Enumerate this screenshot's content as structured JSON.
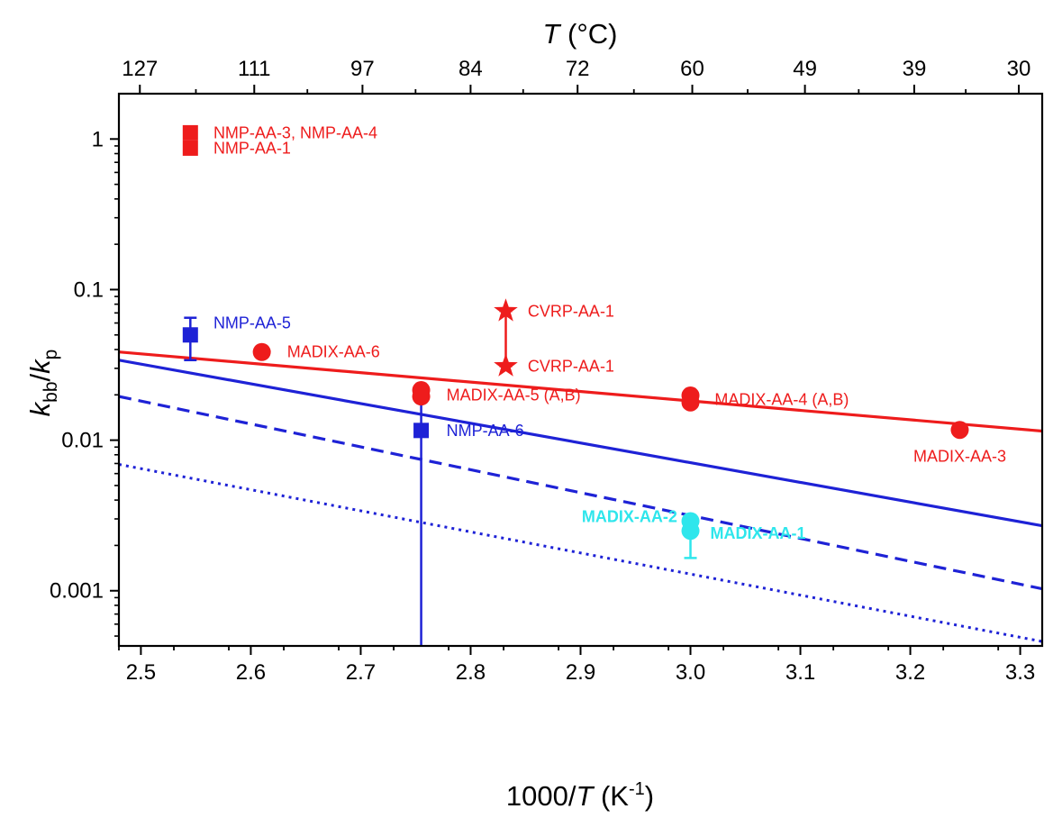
{
  "chart_data": {
    "type": "scatter",
    "x_axis": {
      "label_prefix": "1000/",
      "label_var": "T",
      "label_unit_open": " (K",
      "label_unit_sup": "-1",
      "label_unit_close": ")",
      "range": [
        2.48,
        3.32
      ],
      "ticks": [
        2.5,
        2.6,
        2.7,
        2.8,
        2.9,
        3.0,
        3.1,
        3.2,
        3.3
      ],
      "tick_labels": [
        "2.5",
        "2.6",
        "2.7",
        "2.8",
        "2.9",
        "3.0",
        "3.1",
        "3.2",
        "3.3"
      ]
    },
    "top_axis": {
      "label_var": "T",
      "label_unit": " (°C)",
      "ticks_celsius": [
        127,
        111,
        97,
        84,
        72,
        60,
        49,
        39,
        30
      ],
      "tick_labels": [
        "127",
        "111",
        "97",
        "84",
        "72",
        "60",
        "49",
        "39",
        "30"
      ]
    },
    "y_axis": {
      "label_k": "k",
      "label_sub1": "bb",
      "label_slash": "/",
      "label_sub2": "p",
      "scale": "log",
      "range": [
        0.00043,
        2.0
      ],
      "ticks": [
        0.001,
        0.01,
        0.1,
        1
      ],
      "tick_labels": [
        "0.001",
        "0.01",
        "0.1",
        "1"
      ]
    },
    "lines": [
      {
        "color": "#ee1c1c",
        "style": "solid",
        "points": [
          [
            2.48,
            0.0385
          ],
          [
            3.32,
            0.0115
          ]
        ]
      },
      {
        "color": "#1e22d6",
        "style": "solid",
        "points": [
          [
            2.48,
            0.034
          ],
          [
            3.32,
            0.0027
          ]
        ]
      },
      {
        "color": "#1e22d6",
        "style": "dashed",
        "points": [
          [
            2.48,
            0.0195
          ],
          [
            3.32,
            0.00103
          ]
        ]
      },
      {
        "color": "#1e22d6",
        "style": "dotted",
        "points": [
          [
            2.48,
            0.0069
          ],
          [
            3.32,
            0.00046
          ]
        ]
      }
    ],
    "error_bars": [
      {
        "x": 2.545,
        "y_low": 0.034,
        "y_high": 0.065,
        "color": "#1e22d6"
      },
      {
        "x": 2.755,
        "y_low": 0.0003,
        "y_high": 0.022,
        "color": "#1e22d6"
      },
      {
        "x": 2.832,
        "y_low": 0.031,
        "y_high": 0.072,
        "color": "#ee1c1c"
      },
      {
        "x": 3.0,
        "y_low": 0.00165,
        "y_high": 0.0031,
        "color": "#2ee6ec"
      }
    ],
    "points": [
      {
        "x": 2.545,
        "y": 1.1,
        "marker": "square",
        "color": "#ee1c1c"
      },
      {
        "x": 2.545,
        "y": 0.87,
        "marker": "square",
        "color": "#ee1c1c"
      },
      {
        "x": 2.545,
        "y": 0.05,
        "marker": "square",
        "color": "#1e22d6"
      },
      {
        "x": 2.61,
        "y": 0.0385,
        "marker": "circle",
        "color": "#ee1c1c"
      },
      {
        "x": 2.755,
        "y": 0.0215,
        "marker": "circle",
        "color": "#ee1c1c"
      },
      {
        "x": 2.755,
        "y": 0.0195,
        "marker": "circle",
        "color": "#ee1c1c"
      },
      {
        "x": 2.755,
        "y": 0.0116,
        "marker": "square",
        "color": "#1e22d6"
      },
      {
        "x": 2.832,
        "y": 0.072,
        "marker": "star",
        "color": "#ee1c1c"
      },
      {
        "x": 2.832,
        "y": 0.031,
        "marker": "star",
        "color": "#ee1c1c"
      },
      {
        "x": 3.0,
        "y": 0.0198,
        "marker": "circle",
        "color": "#ee1c1c"
      },
      {
        "x": 3.0,
        "y": 0.0178,
        "marker": "circle",
        "color": "#ee1c1c"
      },
      {
        "x": 3.245,
        "y": 0.0117,
        "marker": "circle",
        "color": "#ee1c1c"
      },
      {
        "x": 3.0,
        "y": 0.0029,
        "marker": "circle",
        "color": "#2ee6ec"
      },
      {
        "x": 3.0,
        "y": 0.0025,
        "marker": "circle",
        "color": "#2ee6ec"
      }
    ],
    "annotations": [
      {
        "text": "NMP-AA-3, NMP-AA-4",
        "x": 2.566,
        "y": 1.1,
        "anchor": "start",
        "color": "#ee1c1c",
        "bold": false
      },
      {
        "text": "NMP-AA-1",
        "x": 2.566,
        "y": 0.87,
        "anchor": "start",
        "color": "#ee1c1c",
        "bold": false
      },
      {
        "text": "NMP-AA-5",
        "x": 2.566,
        "y": 0.06,
        "anchor": "start",
        "color": "#1e22d6",
        "bold": false
      },
      {
        "text": "MADIX-AA-6",
        "x": 2.633,
        "y": 0.0385,
        "anchor": "start",
        "color": "#ee1c1c",
        "bold": false
      },
      {
        "text": "CVRP-AA-1",
        "x": 2.852,
        "y": 0.072,
        "anchor": "start",
        "color": "#ee1c1c",
        "bold": false
      },
      {
        "text": "CVRP-AA-1",
        "x": 2.852,
        "y": 0.031,
        "anchor": "start",
        "color": "#ee1c1c",
        "bold": false
      },
      {
        "text": "MADIX-AA-5 (A,B)",
        "x": 2.778,
        "y": 0.02,
        "anchor": "start",
        "color": "#ee1c1c",
        "bold": false
      },
      {
        "text": "NMP-AA-6",
        "x": 2.778,
        "y": 0.0116,
        "anchor": "start",
        "color": "#1e22d6",
        "bold": false
      },
      {
        "text": "MADIX-AA-4 (A,B)",
        "x": 3.022,
        "y": 0.0186,
        "anchor": "start",
        "color": "#ee1c1c",
        "bold": false
      },
      {
        "text": "MADIX-AA-3",
        "x": 3.245,
        "y": 0.0078,
        "anchor": "middle",
        "color": "#ee1c1c",
        "bold": false
      },
      {
        "text": "MADIX-AA-2",
        "x": 2.988,
        "y": 0.0031,
        "anchor": "end",
        "color": "#2ee6ec",
        "bold": true
      },
      {
        "text": "MADIX-AA-1",
        "x": 3.018,
        "y": 0.0024,
        "anchor": "start",
        "color": "#2ee6ec",
        "bold": true
      }
    ]
  }
}
